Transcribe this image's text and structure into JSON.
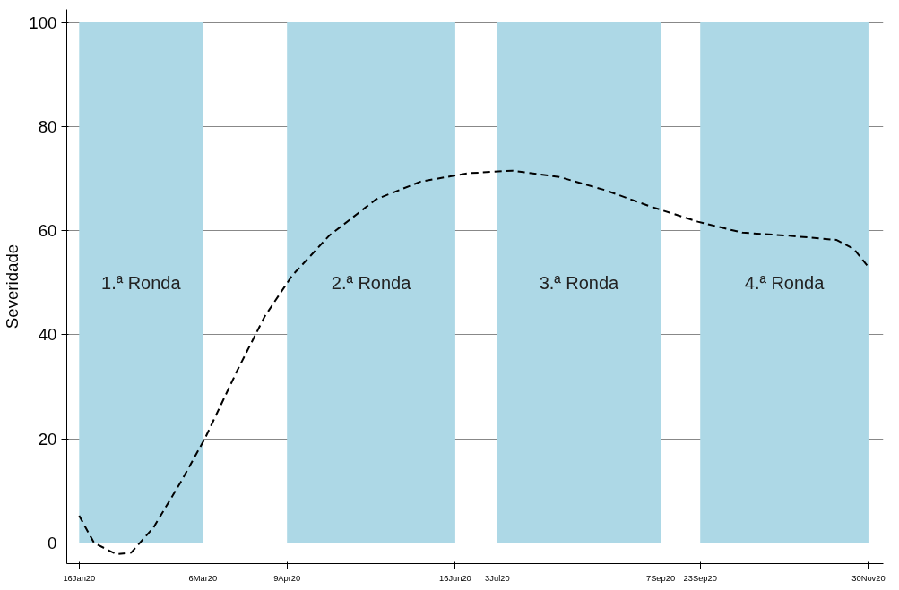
{
  "chart_data": {
    "type": "line",
    "ylabel": "Severidade",
    "x": [
      "2020-01-16",
      "2020-01-22",
      "2020-01-31",
      "2020-02-06",
      "2020-02-15",
      "2020-02-26",
      "2020-03-07",
      "2020-03-20",
      "2020-03-31",
      "2020-04-11",
      "2020-04-26",
      "2020-05-15",
      "2020-06-02",
      "2020-06-21",
      "2020-07-09",
      "2020-07-28",
      "2020-08-16",
      "2020-09-03",
      "2020-09-22",
      "2020-10-10",
      "2020-10-29",
      "2020-11-17",
      "2020-11-24",
      "2020-11-30"
    ],
    "series": [
      {
        "color": "#000000",
        "values": [
          5.2,
          0,
          -2.2,
          -1.9,
          2.9,
          11.6,
          20.2,
          33.2,
          43.5,
          51.3,
          59,
          66,
          69.4,
          71,
          71.5,
          70.3,
          67.7,
          64.6,
          61.7,
          59.6,
          59,
          58.2,
          56.5,
          53
        ]
      }
    ],
    "line_style": "dashed",
    "marker": "none",
    "xlim": [
      "2020-01-11",
      "2020-12-06"
    ],
    "ylim": [
      -4,
      102.5
    ],
    "xticks": [
      {
        "value": "2020-01-16",
        "label": "16Jan20"
      },
      {
        "value": "2020-03-06",
        "label": "6Mar20"
      },
      {
        "value": "2020-04-09",
        "label": "9Apr20"
      },
      {
        "value": "2020-06-16",
        "label": "16Jun20"
      },
      {
        "value": "2020-07-03",
        "label": "3Jul20"
      },
      {
        "value": "2020-09-07",
        "label": "7Sep20"
      },
      {
        "value": "2020-09-23",
        "label": "23Sep20"
      },
      {
        "value": "2020-11-30",
        "label": "30Nov20"
      }
    ],
    "yticks": [
      0,
      20,
      40,
      60,
      80,
      100
    ],
    "grid": "y",
    "bands": [
      {
        "axis": "x",
        "from": "2020-01-16",
        "to": "2020-03-06",
        "label": "1.ª Ronda",
        "color": "#add8e6"
      },
      {
        "axis": "x",
        "from": "2020-04-09",
        "to": "2020-06-16",
        "label": "2.ª Ronda",
        "color": "#add8e6"
      },
      {
        "axis": "x",
        "from": "2020-07-03",
        "to": "2020-09-07",
        "label": "3.ª Ronda",
        "color": "#add8e6"
      },
      {
        "axis": "x",
        "from": "2020-09-23",
        "to": "2020-11-30",
        "label": "4.ª Ronda",
        "color": "#add8e6"
      }
    ]
  }
}
